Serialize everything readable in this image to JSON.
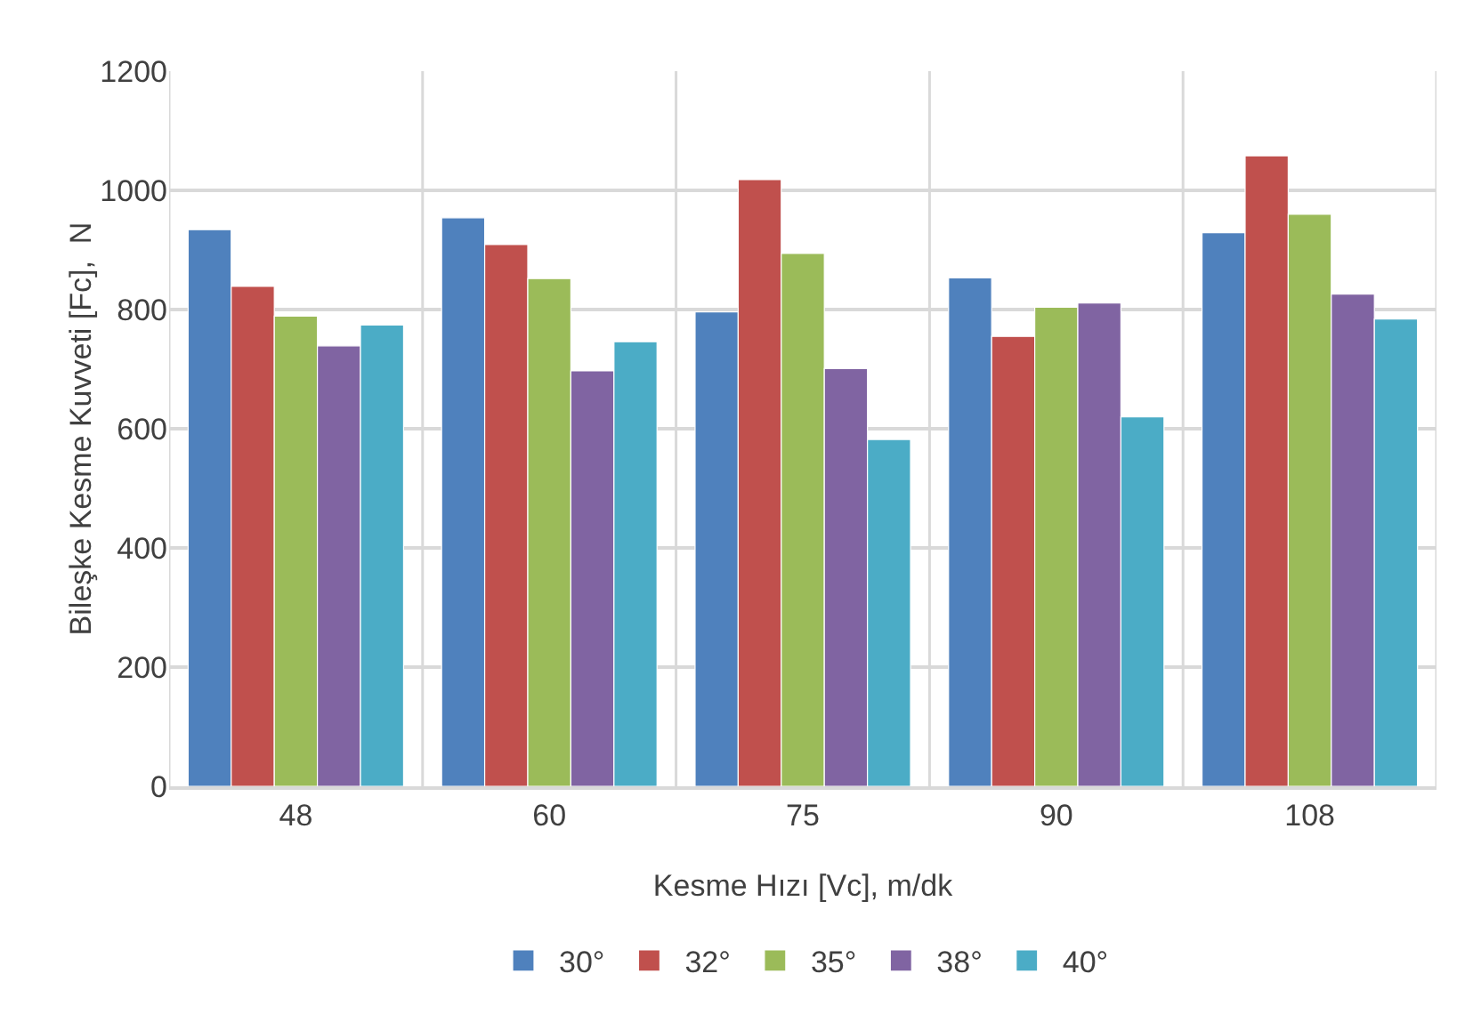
{
  "chart_data": {
    "type": "bar",
    "xlabel": "Kesme Hızı [Vc], m/dk",
    "ylabel": "Bileşke Kesme Kuvveti [Fc],  N",
    "categories": [
      "48",
      "60",
      "75",
      "90",
      "108"
    ],
    "series": [
      {
        "name": "30°",
        "color": "#4f81bd",
        "values": [
          934,
          954,
          796,
          853,
          929
        ]
      },
      {
        "name": "32°",
        "color": "#c0504d",
        "values": [
          839,
          909,
          1018,
          755,
          1058
        ]
      },
      {
        "name": "35°",
        "color": "#9bbb59",
        "values": [
          789,
          852,
          894,
          804,
          960
        ]
      },
      {
        "name": "38°",
        "color": "#8064a2",
        "values": [
          739,
          697,
          701,
          811,
          826
        ]
      },
      {
        "name": "40°",
        "color": "#4bacc6",
        "values": [
          774,
          746,
          582,
          620,
          784
        ]
      }
    ],
    "ylim": [
      0,
      1200
    ],
    "yticks": [
      0,
      200,
      400,
      600,
      800,
      1000,
      1200
    ],
    "grid": true,
    "legend": "bottom"
  }
}
